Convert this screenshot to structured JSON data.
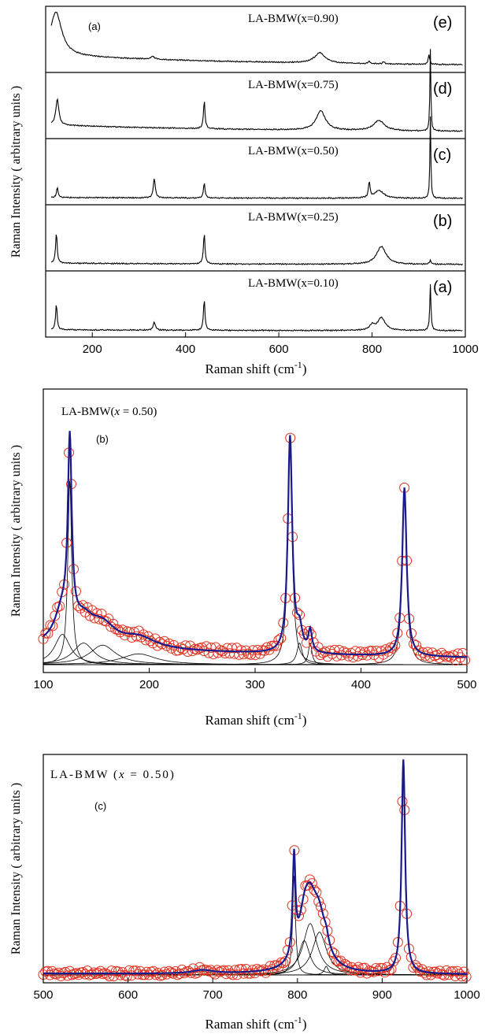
{
  "chart_data": [
    {
      "type": "line",
      "panel_label": "(a)",
      "xlabel": "Raman shift (cm-1)",
      "ylabel": "Raman Intensity ( arbitrary units )",
      "xlim": [
        100,
        1000
      ],
      "x_ticks": [
        200,
        400,
        600,
        800,
        1000
      ],
      "stacked": true,
      "series": [
        {
          "name": "LA-BMW(x=0.90)",
          "letter": "(e)",
          "peaks": [
            [
              122,
              0.85,
              15
            ],
            [
              330,
              0.06,
              4
            ],
            [
              688,
              0.2,
              14
            ],
            [
              794,
              0.05,
              2
            ],
            [
              825,
              0.05,
              2
            ],
            [
              922,
              0.18,
              2
            ]
          ],
          "background": 0.22
        },
        {
          "name": "LA-BMW(x=0.75)",
          "letter": "(d)",
          "peaks": [
            [
              125,
              0.5,
              4
            ],
            [
              440,
              0.55,
              2
            ],
            [
              690,
              0.38,
              12
            ],
            [
              815,
              0.2,
              14
            ],
            [
              925,
              1.6,
              1.2
            ]
          ],
          "background": 0.15
        },
        {
          "name": "LA-BMW(x=0.50)",
          "letter": "(c)",
          "peaks": [
            [
              125,
              0.2,
              2
            ],
            [
              333,
              0.38,
              2.5
            ],
            [
              440,
              0.3,
              2
            ],
            [
              794,
              0.3,
              2
            ],
            [
              815,
              0.15,
              12
            ],
            [
              925,
              1.6,
              1.2
            ]
          ],
          "background": 0.02
        },
        {
          "name": "LA-BMW(x=0.25)",
          "letter": "(b)",
          "peaks": [
            [
              123,
              0.6,
              2
            ],
            [
              440,
              0.6,
              2
            ],
            [
              820,
              0.35,
              12
            ],
            [
              925,
              0.08,
              2
            ]
          ],
          "background": 0.03
        },
        {
          "name": "LA-BMW(x=0.10)",
          "letter": "(a)",
          "peaks": [
            [
              123,
              0.5,
              2
            ],
            [
              333,
              0.15,
              3
            ],
            [
              440,
              0.6,
              2
            ],
            [
              800,
              0.1,
              6
            ],
            [
              820,
              0.25,
              10
            ],
            [
              925,
              0.9,
              1.5
            ]
          ],
          "background": 0.02
        }
      ]
    },
    {
      "type": "scatter",
      "panel_label": "(b)",
      "title": "LA-BMW(x = 0.50)",
      "xlabel": "Raman shift (cm-1)",
      "ylabel": "Raman Intensity ( arbitrary units )",
      "xlim": [
        100,
        500
      ],
      "x_ticks": [
        100,
        200,
        300,
        400,
        500
      ],
      "components": [
        [
          125,
          0.85,
          2.2
        ],
        [
          118,
          0.14,
          9
        ],
        [
          138,
          0.1,
          12
        ],
        [
          156,
          0.09,
          15
        ],
        [
          190,
          0.05,
          20
        ],
        [
          333,
          1.0,
          2.5
        ],
        [
          342,
          0.1,
          3
        ],
        [
          352,
          0.1,
          2
        ],
        [
          441,
          0.78,
          2.5
        ]
      ],
      "background": 0.08
    },
    {
      "type": "scatter",
      "panel_label": "(c)",
      "title": "LA-BMW (x = 0.50)",
      "xlabel": "Raman shift (cm-1)",
      "ylabel": "Raman Intensity ( arbitrary units )",
      "xlim": [
        500,
        1000
      ],
      "x_ticks": [
        500,
        600,
        700,
        800,
        900,
        1000
      ],
      "components": [
        [
          796,
          0.58,
          2
        ],
        [
          808,
          0.2,
          8
        ],
        [
          815,
          0.3,
          10
        ],
        [
          826,
          0.25,
          10
        ],
        [
          834,
          0.05,
          3
        ],
        [
          688,
          0.02,
          15
        ],
        [
          925,
          1.25,
          2.5
        ]
      ],
      "background": 0.02
    }
  ]
}
